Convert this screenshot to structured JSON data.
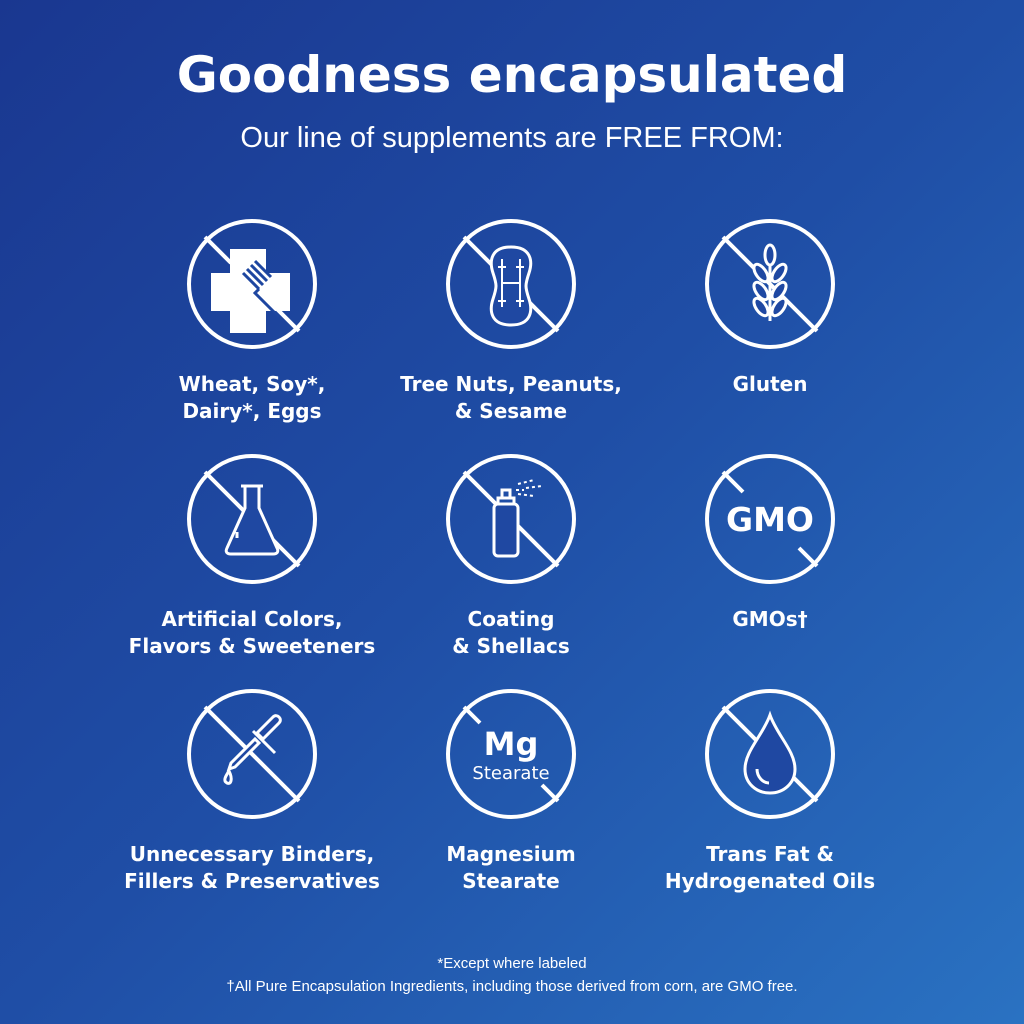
{
  "title": "Goodness encapsulated",
  "subtitle": "Our line of supplements are FREE FROM:",
  "items": [
    {
      "label": "Wheat, Soy*,\nDairy*, Eggs",
      "icon": "allergen-cross-fork-icon"
    },
    {
      "label": "Tree Nuts, Peanuts,\n& Sesame",
      "icon": "peanut-icon"
    },
    {
      "label": "Gluten",
      "icon": "wheat-icon"
    },
    {
      "label": "Artificial Colors,\nFlavors & Sweeteners",
      "icon": "flask-icon"
    },
    {
      "label": "Coating\n& Shellacs",
      "icon": "spray-can-icon"
    },
    {
      "label": "GMOs†",
      "icon": "gmo-text-icon",
      "icon_text": "GMO"
    },
    {
      "label": "Unnecessary Binders,\nFillers & Preservatives",
      "icon": "dropper-icon"
    },
    {
      "label": "Magnesium\nStearate",
      "icon": "mg-stearate-icon",
      "icon_text": "Mg",
      "icon_subtext": "Stearate"
    },
    {
      "label": "Trans Fat &\nHydrogenated Oils",
      "icon": "oil-drop-icon"
    }
  ],
  "footnotes": [
    "*Except where labeled",
    "†All Pure Encapsulation Ingredients, including those derived from corn, are GMO free."
  ]
}
